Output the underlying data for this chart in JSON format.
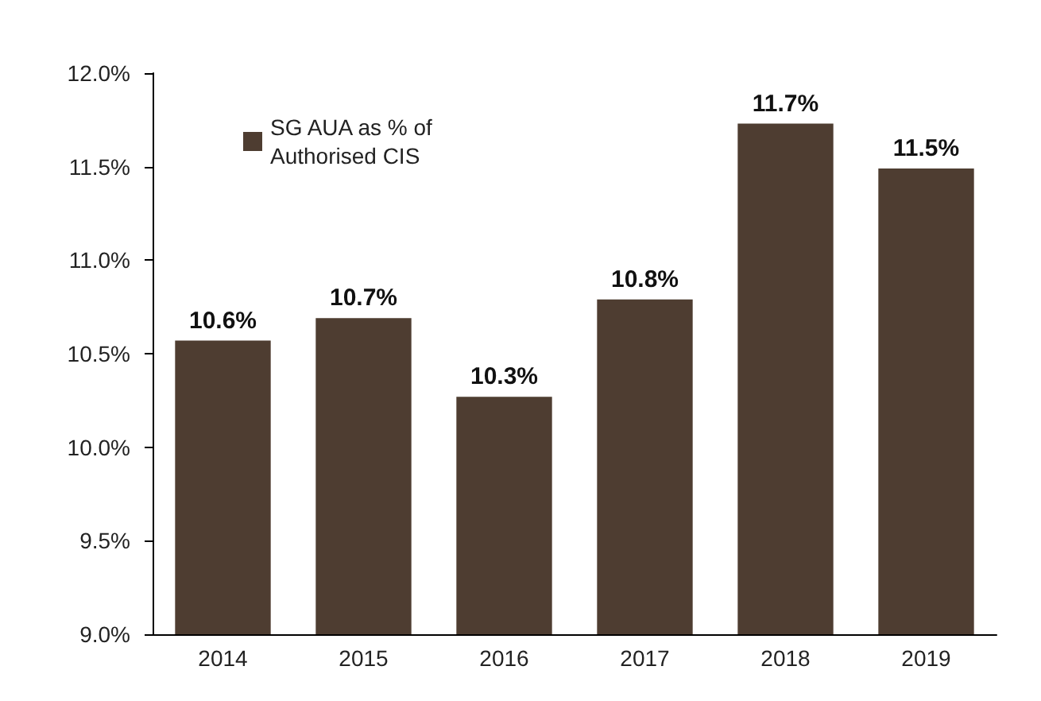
{
  "chart_data": {
    "type": "bar",
    "categories": [
      "2014",
      "2015",
      "2016",
      "2017",
      "2018",
      "2019"
    ],
    "series": [
      {
        "name": "SG AUA as % of Authorised CIS",
        "color": "#4e3d31",
        "values": [
          10.57,
          10.69,
          10.27,
          10.79,
          11.73,
          11.49
        ],
        "value_labels": [
          "10.6%",
          "10.7%",
          "10.3%",
          "10.8%",
          "11.7%",
          "11.5%"
        ]
      }
    ],
    "ylim": [
      9.0,
      12.0
    ],
    "yticks": [
      {
        "value": 9.0,
        "label": "9.0%"
      },
      {
        "value": 9.5,
        "label": "9.5%"
      },
      {
        "value": 10.0,
        "label": "10.0%"
      },
      {
        "value": 10.5,
        "label": "10.5%"
      },
      {
        "value": 11.0,
        "label": "11.0%"
      },
      {
        "value": 11.5,
        "label": "11.5%"
      },
      {
        "value": 12.0,
        "label": "12.0%"
      }
    ],
    "grid": false,
    "legend": "top left"
  }
}
